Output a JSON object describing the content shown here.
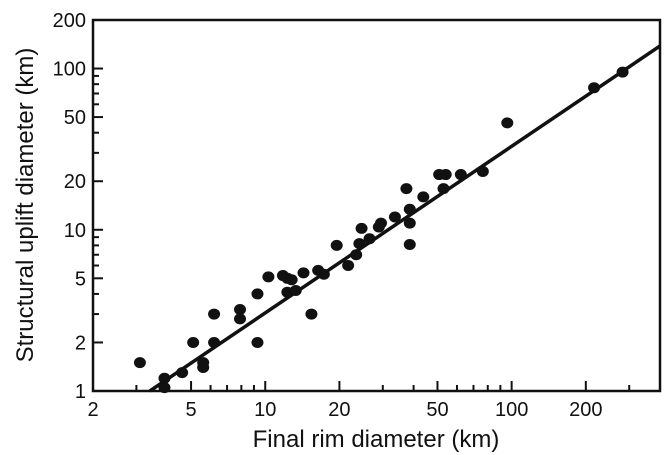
{
  "chart_data": {
    "type": "scatter",
    "title": "",
    "xlabel": "Final rim diameter (km)",
    "ylabel": "Structural uplift diameter (km)",
    "xscale": "log",
    "yscale": "log",
    "xlim": [
      2,
      400
    ],
    "ylim": [
      1,
      200
    ],
    "xticks": [
      2,
      5,
      10,
      20,
      50,
      100,
      200
    ],
    "xtick_labels": [
      "2",
      "5",
      "10",
      "20",
      "50",
      "100",
      "200"
    ],
    "yticks": [
      1,
      2,
      5,
      10,
      20,
      50,
      100,
      200
    ],
    "ytick_labels": [
      "1",
      "2",
      "5",
      "10",
      "20",
      "50",
      "100",
      "200"
    ],
    "grid": false,
    "legend": "none",
    "marker_color": "#111111",
    "points": [
      [
        3.1,
        1.5
      ],
      [
        3.9,
        1.2
      ],
      [
        3.9,
        1.05
      ],
      [
        4.6,
        1.3
      ],
      [
        5.1,
        2.0
      ],
      [
        5.6,
        1.5
      ],
      [
        5.6,
        1.4
      ],
      [
        6.2,
        2.0
      ],
      [
        6.2,
        3.0
      ],
      [
        7.9,
        3.2
      ],
      [
        7.9,
        2.8
      ],
      [
        9.3,
        4.0
      ],
      [
        9.3,
        2.0
      ],
      [
        10.3,
        5.1
      ],
      [
        11.8,
        5.2
      ],
      [
        12.3,
        4.1
      ],
      [
        12.3,
        5.0
      ],
      [
        12.8,
        4.9
      ],
      [
        13.3,
        4.2
      ],
      [
        14.3,
        5.4
      ],
      [
        15.4,
        3.0
      ],
      [
        16.4,
        5.6
      ],
      [
        17.3,
        5.3
      ],
      [
        19.5,
        8.0
      ],
      [
        21.7,
        6.0
      ],
      [
        23.4,
        7.0
      ],
      [
        24.1,
        8.2
      ],
      [
        24.6,
        10.2
      ],
      [
        26.5,
        8.8
      ],
      [
        28.9,
        10.4
      ],
      [
        29.5,
        11.0
      ],
      [
        33.6,
        12.0
      ],
      [
        37.4,
        18.0
      ],
      [
        38.6,
        13.4
      ],
      [
        38.6,
        11.0
      ],
      [
        38.6,
        8.1
      ],
      [
        43.8,
        16.0
      ],
      [
        50.8,
        22.0
      ],
      [
        52.9,
        18.0
      ],
      [
        54.0,
        22.0
      ],
      [
        62.2,
        22.0
      ],
      [
        76.4,
        23.0
      ],
      [
        96.0,
        46.0
      ],
      [
        216.0,
        76.0
      ],
      [
        282.0,
        95.0
      ]
    ],
    "fit_line": {
      "x": [
        3.4,
        400
      ],
      "y": [
        1.0,
        138.0
      ]
    }
  }
}
